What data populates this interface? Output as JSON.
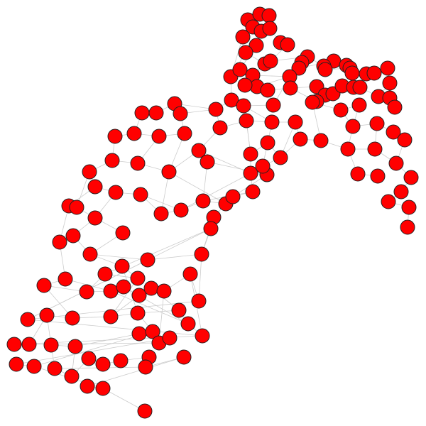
{
  "diagram": {
    "type": "network-graph",
    "node_color": "#ff0000",
    "node_stroke": "#222222",
    "edge_color": "#cccccc",
    "background": "#ffffff"
  }
}
